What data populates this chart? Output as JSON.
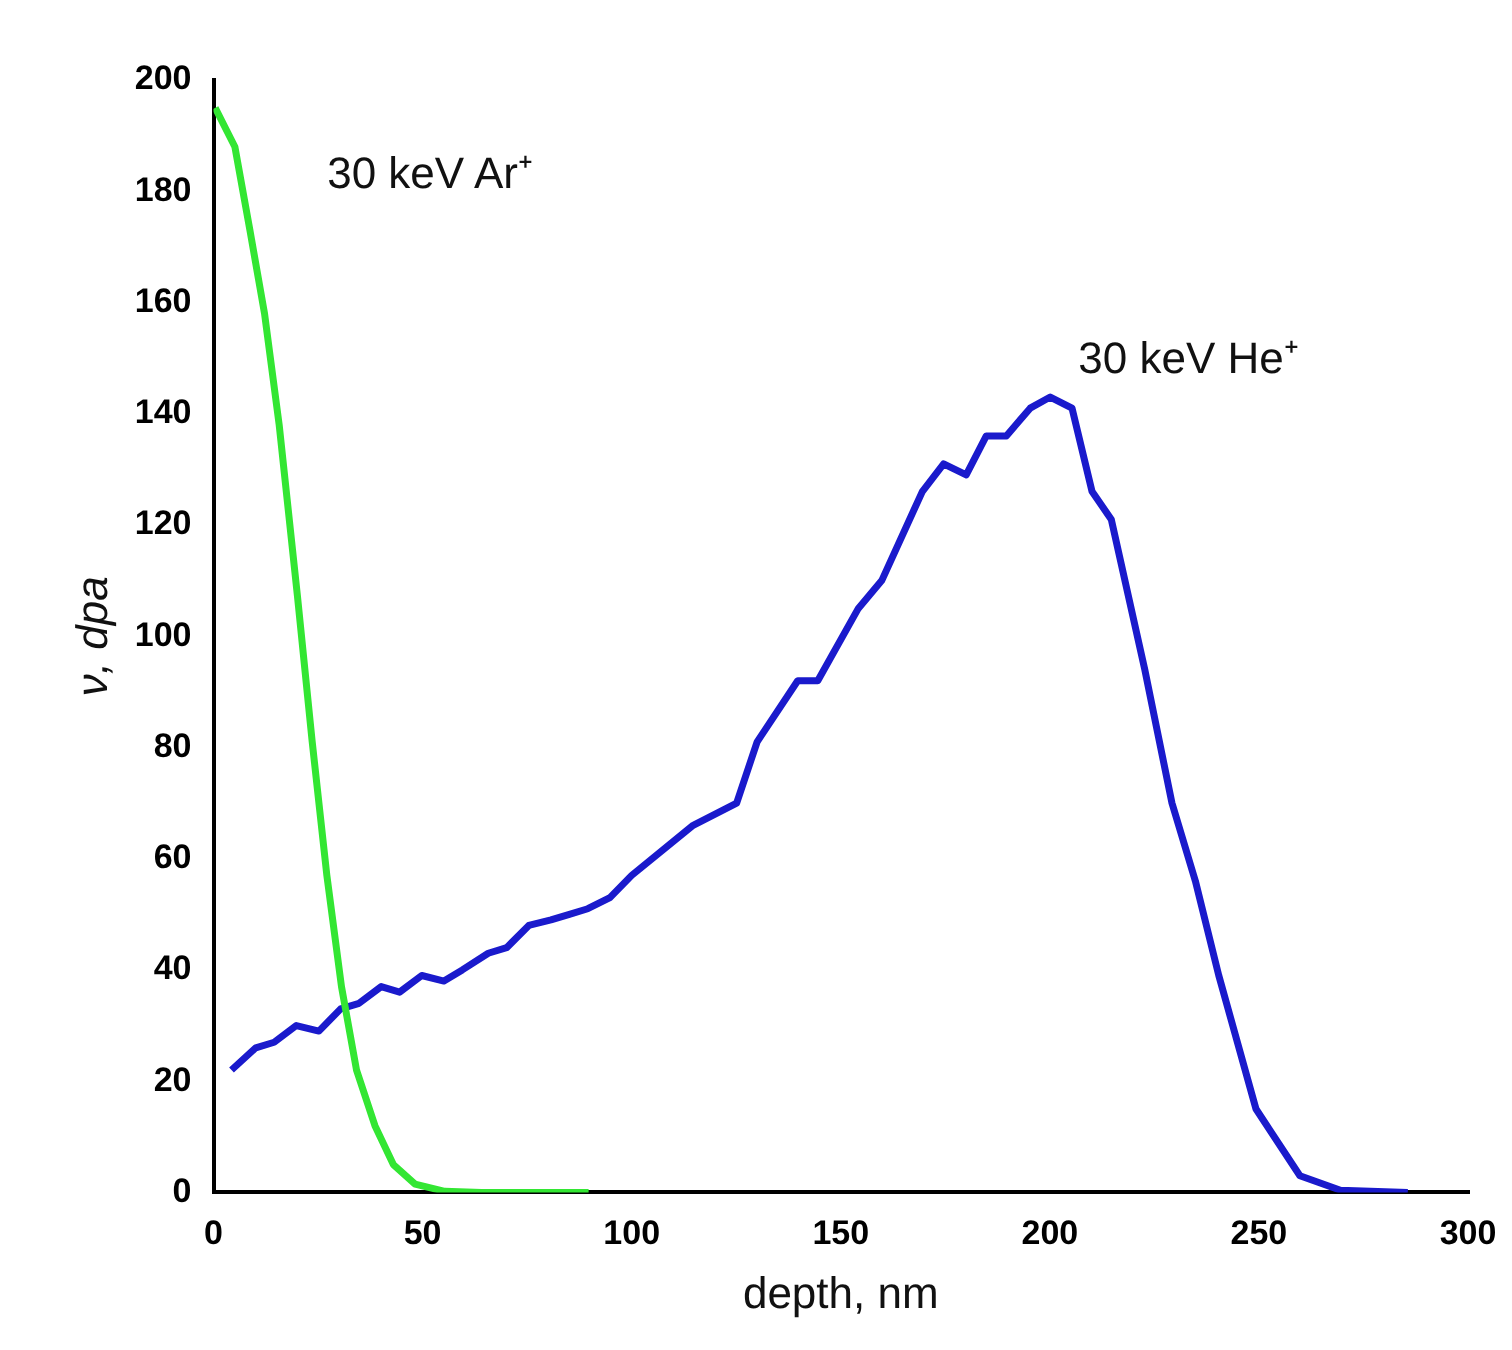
{
  "chart_data": {
    "type": "line",
    "xlabel": "depth, nm",
    "ylabel": "ν, dpa",
    "xlim": [
      0,
      300
    ],
    "xticks": [
      0,
      50,
      100,
      150,
      200,
      250,
      300
    ],
    "ylim": [
      0,
      200
    ],
    "yticks": [
      0,
      20,
      40,
      60,
      80,
      100,
      120,
      140,
      160,
      180,
      200
    ],
    "grid": false,
    "legend": false,
    "marker": "none",
    "line_style": "solid",
    "series": [
      {
        "name": "30 keV Ar⁺",
        "color": "#33e633",
        "x": [
          0.4,
          5.1,
          8.7,
          12.2,
          15.7,
          20.1,
          23.6,
          27.1,
          30.6,
          34.2,
          38.6,
          43,
          48.2,
          55.3,
          64.1,
          89.7
        ],
        "values": [
          195,
          188,
          173,
          158,
          138,
          107,
          81,
          57,
          37,
          22,
          12,
          5,
          1.5,
          0.2,
          0,
          0
        ]
      },
      {
        "name": "30 keV He⁺",
        "color": "#1a1acc",
        "x": [
          4.3,
          10.1,
          14.5,
          19.8,
          25.2,
          30.4,
          34.8,
          40.1,
          44.5,
          49.8,
          55.1,
          59.5,
          65.7,
          70.1,
          75.4,
          80.7,
          85.1,
          89.5,
          94.8,
          100,
          114.7,
          125.1,
          130,
          139.7,
          144.5,
          154.2,
          159.8,
          169.5,
          174.6,
          180,
          184.8,
          189.6,
          195.3,
          200.1,
          205.3,
          210.1,
          214.7,
          222.7,
          229.2,
          234.8,
          240.4,
          249.3,
          259.8,
          269.5,
          285.6
        ],
        "values": [
          22,
          26,
          27,
          30,
          29,
          33,
          34,
          37,
          36,
          39,
          38,
          40,
          43,
          44,
          48,
          49,
          50,
          51,
          53,
          57,
          66,
          70,
          81,
          92,
          92,
          105,
          110,
          126,
          131,
          129,
          136,
          136,
          141,
          143,
          141,
          126,
          121,
          94,
          70,
          56,
          39,
          15,
          3,
          0.4,
          0
        ]
      }
    ]
  }
}
